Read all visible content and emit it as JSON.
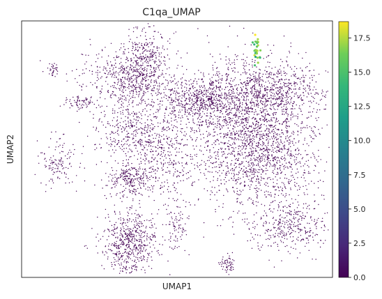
{
  "chart_data": {
    "type": "scatter",
    "title": "C1qa_UMAP",
    "xlabel": "UMAP1",
    "ylabel": "UMAP2",
    "x_ticks_shown": false,
    "y_ticks_shown": false,
    "grid": false,
    "legend": "colorbar-right",
    "colormap": "viridis",
    "color_range": [
      0.0,
      18.7
    ],
    "colorbar_ticks": [
      "0.0",
      "2.5",
      "5.0",
      "7.5",
      "10.0",
      "12.5",
      "15.0",
      "17.5"
    ],
    "colorbar_tick_values": [
      0.0,
      2.5,
      5.0,
      7.5,
      10.0,
      12.5,
      15.0,
      17.5
    ],
    "clusters": [
      {
        "name": "main_right",
        "cx": 0.76,
        "cy": 0.54,
        "sx": 0.1,
        "sy": 0.15,
        "n": 2100,
        "value": 0
      },
      {
        "name": "main_right_upper",
        "cx": 0.8,
        "cy": 0.73,
        "sx": 0.09,
        "sy": 0.05,
        "n": 500,
        "value": 0
      },
      {
        "name": "central_upper",
        "cx": 0.58,
        "cy": 0.69,
        "sx": 0.07,
        "sy": 0.045,
        "n": 650,
        "value": 0
      },
      {
        "name": "upper_left_arc",
        "cx": 0.35,
        "cy": 0.78,
        "sx": 0.07,
        "sy": 0.06,
        "n": 650,
        "value": 0
      },
      {
        "name": "top_spike",
        "cx": 0.4,
        "cy": 0.88,
        "sx": 0.03,
        "sy": 0.05,
        "n": 180,
        "value": 0
      },
      {
        "name": "left_middle",
        "cx": 0.37,
        "cy": 0.57,
        "sx": 0.07,
        "sy": 0.06,
        "n": 420,
        "value": 0
      },
      {
        "name": "center_left",
        "cx": 0.47,
        "cy": 0.46,
        "sx": 0.06,
        "sy": 0.08,
        "n": 300,
        "value": 0
      },
      {
        "name": "left_lower_mid",
        "cx": 0.35,
        "cy": 0.38,
        "sx": 0.04,
        "sy": 0.035,
        "n": 260,
        "value": 0
      },
      {
        "name": "bottom_left_blob",
        "cx": 0.35,
        "cy": 0.14,
        "sx": 0.045,
        "sy": 0.065,
        "n": 600,
        "value": 0
      },
      {
        "name": "bottom_center_small",
        "cx": 0.66,
        "cy": 0.05,
        "sx": 0.012,
        "sy": 0.02,
        "n": 60,
        "value": 0
      },
      {
        "name": "mid_bottom_strip",
        "cx": 0.5,
        "cy": 0.2,
        "sx": 0.02,
        "sy": 0.05,
        "n": 80,
        "value": 0
      },
      {
        "name": "lower_right_blob",
        "cx": 0.86,
        "cy": 0.2,
        "sx": 0.06,
        "sy": 0.05,
        "n": 300,
        "value": 0
      },
      {
        "name": "far_left_small",
        "cx": 0.1,
        "cy": 0.81,
        "sx": 0.01,
        "sy": 0.012,
        "n": 35,
        "value": 0
      },
      {
        "name": "left_band",
        "cx": 0.19,
        "cy": 0.68,
        "sx": 0.025,
        "sy": 0.012,
        "n": 70,
        "value": 0
      },
      {
        "name": "left_arc",
        "cx": 0.12,
        "cy": 0.45,
        "sx": 0.03,
        "sy": 0.05,
        "n": 130,
        "value": 0
      },
      {
        "name": "high_C1qa_stalk",
        "cx": 0.755,
        "cy": 0.89,
        "sx": 0.005,
        "sy": 0.035,
        "n": 30,
        "value": 15.5
      }
    ]
  }
}
